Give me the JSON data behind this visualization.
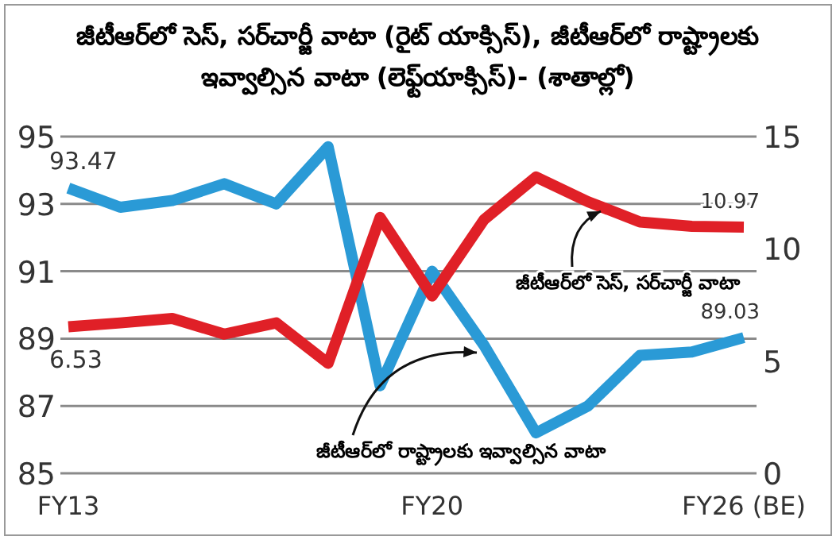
{
  "chart_data": {
    "type": "line",
    "title": "జీటీఆర్‌లో సెస్, సర్‌చార్జీ వాటా (రైట్ యాక్సిస్), జీటీఆర్‌లో రాష్ట్రాలకు ఇవ్వాల్సిన వాటా (లెఫ్ట్‌యాక్సిస్)- (శాతాల్లో)",
    "categories": [
      "FY13",
      null,
      null,
      null,
      null,
      null,
      null,
      "FY20",
      null,
      null,
      null,
      null,
      null,
      "FY26 (BE)"
    ],
    "series": [
      {
        "name": "జీటీఆర్‌లో రాష్ట్రాలకు ఇవ్వాల్సిన వాటా",
        "color": "#2a9ad6",
        "values": [
          93.47,
          92.9,
          93.1,
          93.6,
          93.0,
          94.7,
          87.6,
          91.0,
          88.8,
          86.2,
          87.0,
          88.5,
          88.6,
          89.03
        ],
        "value_labels": [
          "93.47",
          null,
          null,
          null,
          null,
          null,
          null,
          null,
          null,
          null,
          null,
          null,
          null,
          "89.03"
        ]
      },
      {
        "name": "జీటీఆర్‌లో సెస్, సర్‌చార్జీ వాటా",
        "color": "#e02027",
        "axis": "y2",
        "values": [
          6.53,
          6.7,
          6.9,
          6.2,
          6.7,
          4.9,
          11.4,
          7.9,
          11.3,
          13.2,
          12.1,
          11.2,
          11.0,
          10.97
        ],
        "value_labels": [
          "6.53",
          null,
          null,
          null,
          null,
          null,
          null,
          null,
          null,
          null,
          null,
          null,
          null,
          "10.97"
        ]
      }
    ],
    "ylim": [
      85,
      95
    ],
    "yticks": [
      85,
      87,
      89,
      91,
      93,
      95
    ],
    "y2lim": [
      0,
      15
    ],
    "y2ticks": [
      0,
      5,
      10,
      15
    ],
    "grid": "y"
  }
}
